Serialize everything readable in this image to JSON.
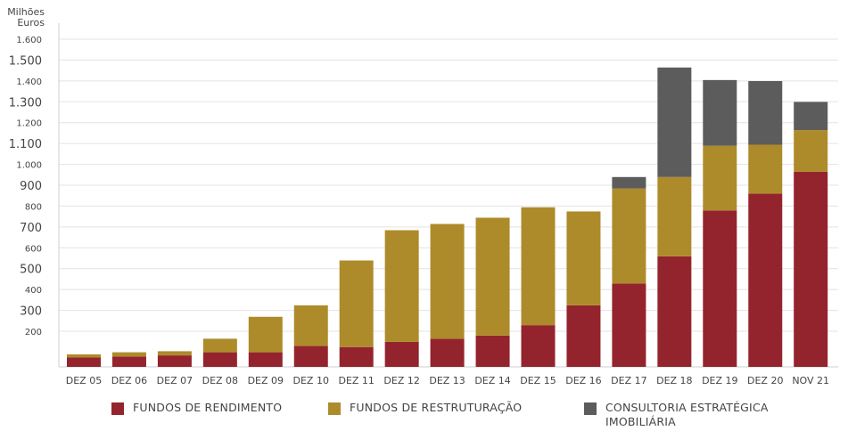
{
  "chart_data": {
    "type": "bar",
    "stacked": true,
    "ylabel": "Milhões Euros",
    "ylim": [
      0,
      1650
    ],
    "grid": true,
    "legend_position": "bottom",
    "categories": [
      "DEZ 05",
      "DEZ 06",
      "DEZ 07",
      "DEZ 08",
      "DEZ 09",
      "DEZ 10",
      "DEZ 11",
      "DEZ 12",
      "DEZ 13",
      "DEZ 14",
      "DEZ 15",
      "DEZ  16",
      "DEZ 17",
      "DEZ  18",
      "DEZ  19",
      "DEZ  20",
      "NOV 21"
    ],
    "y_ticks": [
      {
        "value": 200,
        "label": "200",
        "major": false
      },
      {
        "value": 300,
        "label": "300",
        "major": true
      },
      {
        "value": 400,
        "label": "400",
        "major": false
      },
      {
        "value": 500,
        "label": "500",
        "major": true
      },
      {
        "value": 600,
        "label": "600",
        "major": false
      },
      {
        "value": 700,
        "label": "700",
        "major": true
      },
      {
        "value": 800,
        "label": "800",
        "major": false
      },
      {
        "value": 900,
        "label": "900",
        "major": true
      },
      {
        "value": 1000,
        "label": "1.000",
        "major": false
      },
      {
        "value": 1100,
        "label": "1.100",
        "major": true
      },
      {
        "value": 1200,
        "label": "1.200",
        "major": false
      },
      {
        "value": 1300,
        "label": "1.300",
        "major": true
      },
      {
        "value": 1400,
        "label": "1.400",
        "major": false
      },
      {
        "value": 1500,
        "label": "1.500",
        "major": true
      },
      {
        "value": 1600,
        "label": "1.600",
        "major": false
      }
    ],
    "series": [
      {
        "name": "FUNDOS DE RENDIMENTO",
        "color": "#93242d",
        "values": [
          45,
          50,
          55,
          70,
          70,
          100,
          95,
          120,
          135,
          150,
          200,
          295,
          400,
          530,
          750,
          830,
          935
        ]
      },
      {
        "name": "FUNDOS DE RESTRUTURAÇÃO",
        "color": "#ae8b2a",
        "values": [
          15,
          20,
          20,
          65,
          170,
          195,
          415,
          535,
          550,
          565,
          565,
          450,
          455,
          380,
          310,
          235,
          200
        ]
      },
      {
        "name": "CONSULTORIA ESTRATÉGICA\nIMOBILIÁRIA",
        "color": "#5c5c5c",
        "values": [
          0,
          0,
          0,
          0,
          0,
          0,
          0,
          0,
          0,
          0,
          0,
          0,
          55,
          525,
          315,
          305,
          135
        ]
      }
    ]
  },
  "y_axis_title": [
    "Milhões",
    "Euros"
  ]
}
